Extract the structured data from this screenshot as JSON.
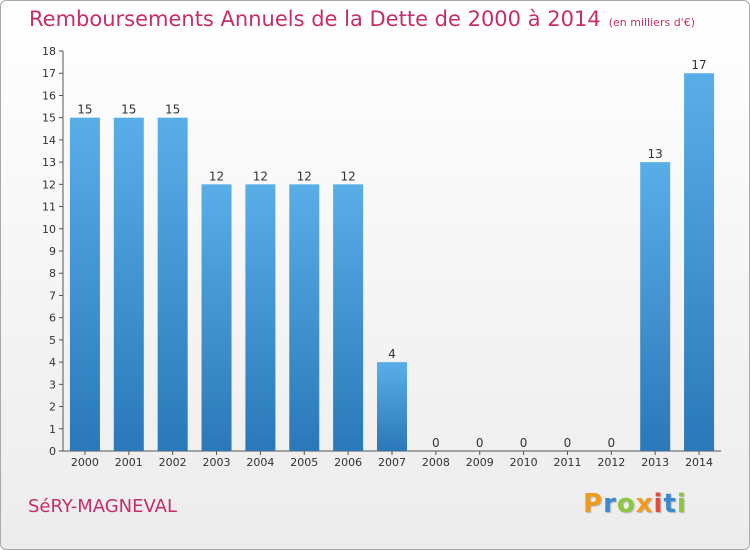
{
  "header": {
    "title": "Remboursements Annuels de la Dette de 2000 à 2014",
    "unit": "(en milliers d'€)"
  },
  "footer": {
    "commune": "SéRY-MAGNEVAL",
    "logo_text": "Proxiti"
  },
  "colors": {
    "accent": "#c62d6a",
    "bar_top": "#5aaee8",
    "bar_bottom": "#2a78b8"
  },
  "chart_data": {
    "type": "bar",
    "title": "Remboursements Annuels de la Dette de 2000 à 2014",
    "xlabel": "",
    "ylabel": "(en milliers d'€)",
    "categories": [
      "2000",
      "2001",
      "2002",
      "2003",
      "2004",
      "2005",
      "2006",
      "2007",
      "2008",
      "2009",
      "2010",
      "2011",
      "2012",
      "2013",
      "2014"
    ],
    "values": [
      15,
      15,
      15,
      12,
      12,
      12,
      12,
      4,
      0,
      0,
      0,
      0,
      0,
      13,
      17
    ],
    "ylim": [
      0,
      18
    ],
    "yticks": [
      0,
      1,
      2,
      3,
      4,
      5,
      6,
      7,
      8,
      9,
      10,
      11,
      12,
      13,
      14,
      15,
      16,
      17,
      18
    ],
    "grid": false
  }
}
